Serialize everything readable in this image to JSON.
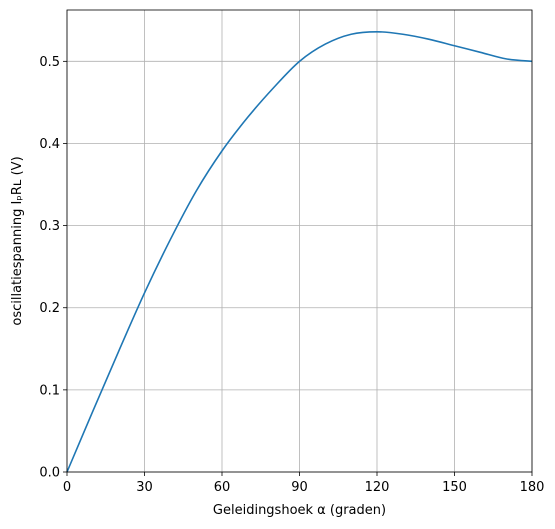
{
  "chart_data": {
    "type": "line",
    "title": "",
    "xlabel": "Geleidingshoek α (graden)",
    "ylabel": "oscillatiespanning  IₚRʟ (V)",
    "xlim": [
      0,
      180
    ],
    "ylim": [
      0,
      0.5625
    ],
    "xticks": [
      0,
      30,
      60,
      90,
      120,
      150,
      180
    ],
    "yticks": [
      0.0,
      0.1,
      0.2,
      0.3,
      0.4,
      0.5
    ],
    "xtick_labels": [
      "0",
      "30",
      "60",
      "90",
      "120",
      "150",
      "180"
    ],
    "ytick_labels": [
      "0.0",
      "0.1",
      "0.2",
      "0.3",
      "0.4",
      "0.5"
    ],
    "grid": true,
    "line_color": "#1f77b4",
    "series": [
      {
        "x": [
          0,
          10,
          20,
          30,
          40,
          50,
          60,
          70,
          80,
          90,
          100,
          110,
          120,
          130,
          140,
          150,
          160,
          170,
          180
        ],
        "values": [
          0.0,
          0.074,
          0.147,
          0.218,
          0.283,
          0.342,
          0.391,
          0.432,
          0.468,
          0.5,
          0.521,
          0.533,
          0.536,
          0.533,
          0.527,
          0.519,
          0.511,
          0.503,
          0.5
        ]
      }
    ]
  }
}
